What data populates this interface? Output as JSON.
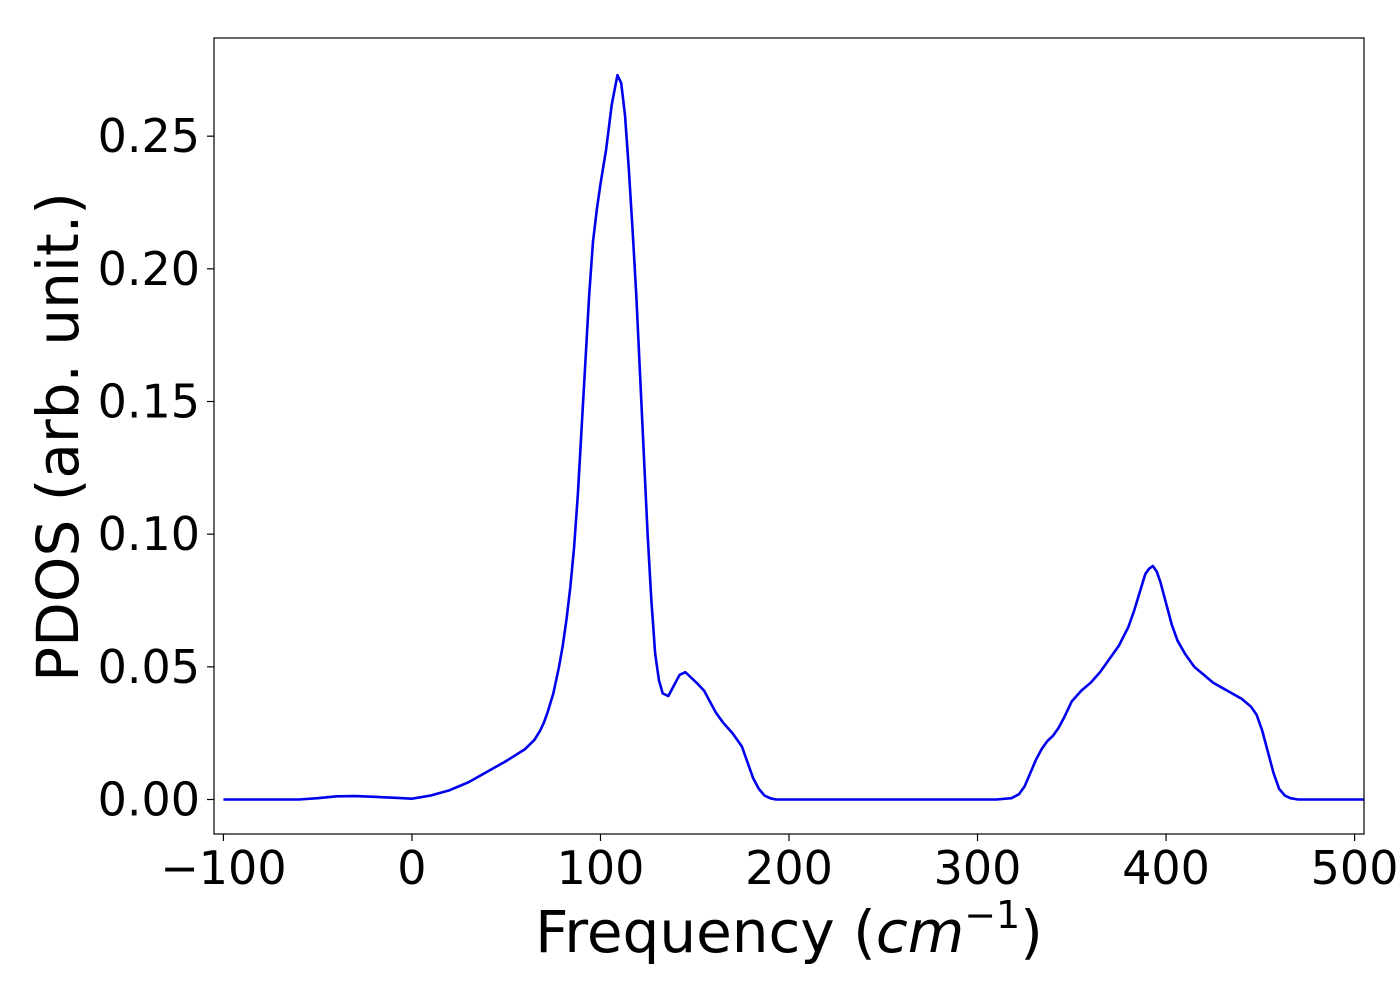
{
  "chart_data": {
    "type": "line",
    "title": "",
    "xlabel_prefix": "Frequency (",
    "xlabel_unit_base": "cm",
    "xlabel_unit_exp": "−1",
    "xlabel_suffix": ")",
    "ylabel": "PDOS (arb. unit.)",
    "xlim": [
      -105,
      505
    ],
    "ylim": [
      -0.013,
      0.287
    ],
    "xticks": [
      -100,
      0,
      100,
      200,
      300,
      400,
      500
    ],
    "xtick_labels": [
      "−100",
      "0",
      "100",
      "200",
      "300",
      "400",
      "500"
    ],
    "yticks": [
      0.0,
      0.05,
      0.1,
      0.15,
      0.2,
      0.25
    ],
    "ytick_labels": [
      "0.00",
      "0.05",
      "0.10",
      "0.15",
      "0.20",
      "0.25"
    ],
    "grid": false,
    "legend": "none",
    "series": [
      {
        "color": "#0000ee",
        "x": [
          -100,
          -80,
          -60,
          -50,
          -40,
          -30,
          -20,
          -10,
          0,
          10,
          20,
          30,
          40,
          50,
          60,
          65,
          68,
          70,
          72,
          75,
          78,
          80,
          82,
          84,
          86,
          88,
          90,
          92,
          94,
          96,
          98,
          100,
          103,
          106,
          109,
          111,
          113,
          115,
          117,
          119,
          121,
          123,
          125,
          127,
          129,
          131,
          133,
          136,
          139,
          142,
          145,
          148,
          151,
          155,
          158,
          161,
          165,
          170,
          175,
          178,
          181,
          184,
          187,
          190,
          193,
          196,
          200,
          220,
          250,
          280,
          310,
          318,
          322,
          325,
          328,
          331,
          334,
          337,
          340,
          343,
          346,
          350,
          355,
          360,
          365,
          370,
          375,
          380,
          383,
          386,
          389,
          391,
          393,
          395,
          397,
          400,
          403,
          406,
          410,
          415,
          420,
          425,
          430,
          435,
          440,
          445,
          448,
          451,
          454,
          457,
          460,
          463,
          466,
          470,
          480,
          490,
          505
        ],
        "y": [
          0.0,
          0.0,
          0.0,
          0.0005,
          0.0012,
          0.0013,
          0.001,
          0.0007,
          0.0003,
          0.0015,
          0.0035,
          0.0065,
          0.0105,
          0.0145,
          0.019,
          0.0225,
          0.026,
          0.029,
          0.033,
          0.04,
          0.05,
          0.058,
          0.068,
          0.08,
          0.095,
          0.115,
          0.14,
          0.165,
          0.19,
          0.21,
          0.222,
          0.232,
          0.245,
          0.262,
          0.273,
          0.27,
          0.258,
          0.238,
          0.215,
          0.19,
          0.16,
          0.13,
          0.1,
          0.075,
          0.055,
          0.045,
          0.04,
          0.039,
          0.043,
          0.047,
          0.048,
          0.046,
          0.044,
          0.041,
          0.037,
          0.033,
          0.029,
          0.025,
          0.02,
          0.014,
          0.008,
          0.004,
          0.0015,
          0.0005,
          0.0,
          0.0,
          0.0,
          0.0,
          0.0,
          0.0,
          0.0,
          0.0005,
          0.002,
          0.005,
          0.01,
          0.015,
          0.019,
          0.022,
          0.024,
          0.027,
          0.031,
          0.037,
          0.041,
          0.044,
          0.048,
          0.053,
          0.058,
          0.065,
          0.071,
          0.078,
          0.085,
          0.087,
          0.088,
          0.086,
          0.082,
          0.074,
          0.066,
          0.06,
          0.055,
          0.05,
          0.047,
          0.044,
          0.042,
          0.04,
          0.038,
          0.035,
          0.032,
          0.026,
          0.018,
          0.01,
          0.004,
          0.0015,
          0.0005,
          0.0,
          0.0,
          0.0,
          0.0
        ]
      }
    ]
  }
}
